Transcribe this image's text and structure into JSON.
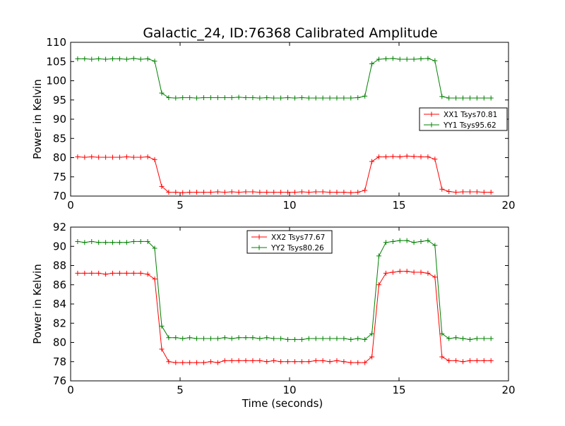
{
  "figure": {
    "title": "Galactic_24, ID:76368 Calibrated Amplitude"
  },
  "chart_data": [
    {
      "type": "line",
      "title": "Galactic_24, ID:76368 Calibrated Amplitude",
      "xlabel": "",
      "ylabel": "Power in Kelvin",
      "xlim": [
        0,
        20
      ],
      "ylim": [
        70,
        110
      ],
      "x_ticks": [
        "0",
        "5",
        "10",
        "15",
        "20"
      ],
      "y_ticks": [
        "70",
        "75",
        "80",
        "85",
        "90",
        "95",
        "100",
        "105",
        "110"
      ],
      "grid": false,
      "legend_position": "center-right",
      "x": [
        0.32,
        0.64,
        0.96,
        1.28,
        1.6,
        1.92,
        2.24,
        2.56,
        2.88,
        3.2,
        3.52,
        3.84,
        4.16,
        4.48,
        4.8,
        5.12,
        5.44,
        5.76,
        6.08,
        6.4,
        6.72,
        7.04,
        7.36,
        7.68,
        8.0,
        8.32,
        8.64,
        8.96,
        9.28,
        9.6,
        9.92,
        10.24,
        10.56,
        10.88,
        11.2,
        11.52,
        11.84,
        12.16,
        12.48,
        12.8,
        13.12,
        13.44,
        13.76,
        14.08,
        14.4,
        14.72,
        15.04,
        15.36,
        15.68,
        16.0,
        16.32,
        16.64,
        16.96,
        17.28,
        17.6,
        17.92,
        18.24,
        18.56,
        18.88,
        19.2
      ],
      "series": [
        {
          "name": "XX1 Tsys70.81",
          "color": "#ff0000",
          "values": [
            80.2,
            80.1,
            80.2,
            80.1,
            80.1,
            80.1,
            80.1,
            80.2,
            80.1,
            80.1,
            80.2,
            79.5,
            72.5,
            71.0,
            71.0,
            70.9,
            71.0,
            71.0,
            71.0,
            71.0,
            71.1,
            71.0,
            71.1,
            71.0,
            71.1,
            71.1,
            71.0,
            71.0,
            71.0,
            71.0,
            71.0,
            71.0,
            71.1,
            71.0,
            71.1,
            71.1,
            71.0,
            71.0,
            71.0,
            70.9,
            71.0,
            71.5,
            79.0,
            80.2,
            80.2,
            80.3,
            80.2,
            80.4,
            80.3,
            80.2,
            80.2,
            79.6,
            71.8,
            71.2,
            71.0,
            71.1,
            71.1,
            71.1,
            71.0,
            71.0
          ]
        },
        {
          "name": "YY1 Tsys95.62",
          "color": "#008000",
          "values": [
            105.7,
            105.7,
            105.6,
            105.7,
            105.6,
            105.7,
            105.7,
            105.6,
            105.8,
            105.6,
            105.7,
            105.1,
            96.8,
            95.6,
            95.5,
            95.6,
            95.6,
            95.5,
            95.6,
            95.6,
            95.6,
            95.6,
            95.6,
            95.7,
            95.6,
            95.6,
            95.5,
            95.6,
            95.5,
            95.5,
            95.6,
            95.5,
            95.6,
            95.5,
            95.5,
            95.5,
            95.5,
            95.5,
            95.5,
            95.5,
            95.6,
            96.0,
            104.4,
            105.6,
            105.7,
            105.8,
            105.6,
            105.6,
            105.6,
            105.7,
            105.8,
            105.2,
            95.9,
            95.5,
            95.5,
            95.5,
            95.5,
            95.5,
            95.5,
            95.5
          ]
        }
      ]
    },
    {
      "type": "line",
      "title": "",
      "xlabel": "Time (seconds)",
      "ylabel": "Power in Kelvin",
      "xlim": [
        0,
        20
      ],
      "ylim": [
        76,
        92
      ],
      "x_ticks": [
        "0",
        "5",
        "10",
        "15",
        "20"
      ],
      "y_ticks": [
        "76",
        "78",
        "80",
        "82",
        "84",
        "86",
        "88",
        "90",
        "92"
      ],
      "grid": false,
      "legend_position": "top-center",
      "x": [
        0.32,
        0.64,
        0.96,
        1.28,
        1.6,
        1.92,
        2.24,
        2.56,
        2.88,
        3.2,
        3.52,
        3.84,
        4.16,
        4.48,
        4.8,
        5.12,
        5.44,
        5.76,
        6.08,
        6.4,
        6.72,
        7.04,
        7.36,
        7.68,
        8.0,
        8.32,
        8.64,
        8.96,
        9.28,
        9.6,
        9.92,
        10.24,
        10.56,
        10.88,
        11.2,
        11.52,
        11.84,
        12.16,
        12.48,
        12.8,
        13.12,
        13.44,
        13.76,
        14.08,
        14.4,
        14.72,
        15.04,
        15.36,
        15.68,
        16.0,
        16.32,
        16.64,
        16.96,
        17.28,
        17.6,
        17.92,
        18.24,
        18.56,
        18.88,
        19.2
      ],
      "series": [
        {
          "name": "XX2 Tsys77.67",
          "color": "#ff0000",
          "values": [
            87.2,
            87.2,
            87.2,
            87.2,
            87.1,
            87.2,
            87.2,
            87.2,
            87.2,
            87.2,
            87.1,
            86.6,
            79.3,
            78.0,
            77.9,
            77.9,
            77.9,
            77.9,
            77.9,
            78.0,
            77.9,
            78.1,
            78.1,
            78.1,
            78.1,
            78.1,
            78.1,
            78.0,
            78.1,
            78.0,
            78.0,
            78.0,
            78.0,
            78.0,
            78.1,
            78.1,
            78.0,
            78.1,
            78.0,
            77.9,
            77.9,
            77.9,
            78.5,
            86.0,
            87.2,
            87.3,
            87.4,
            87.4,
            87.3,
            87.3,
            87.2,
            86.8,
            78.5,
            78.1,
            78.1,
            78.0,
            78.1,
            78.1,
            78.1,
            78.1
          ]
        },
        {
          "name": "YY2 Tsys80.26",
          "color": "#008000",
          "values": [
            90.5,
            90.4,
            90.5,
            90.4,
            90.4,
            90.4,
            90.4,
            90.4,
            90.5,
            90.5,
            90.5,
            89.8,
            81.7,
            80.5,
            80.5,
            80.4,
            80.5,
            80.4,
            80.4,
            80.4,
            80.4,
            80.5,
            80.4,
            80.5,
            80.5,
            80.5,
            80.4,
            80.5,
            80.4,
            80.4,
            80.3,
            80.3,
            80.3,
            80.4,
            80.4,
            80.4,
            80.4,
            80.4,
            80.4,
            80.3,
            80.4,
            80.3,
            80.9,
            89.0,
            90.4,
            90.5,
            90.6,
            90.6,
            90.4,
            90.5,
            90.6,
            90.1,
            80.9,
            80.4,
            80.5,
            80.4,
            80.3,
            80.4,
            80.4,
            80.4
          ]
        }
      ]
    }
  ]
}
